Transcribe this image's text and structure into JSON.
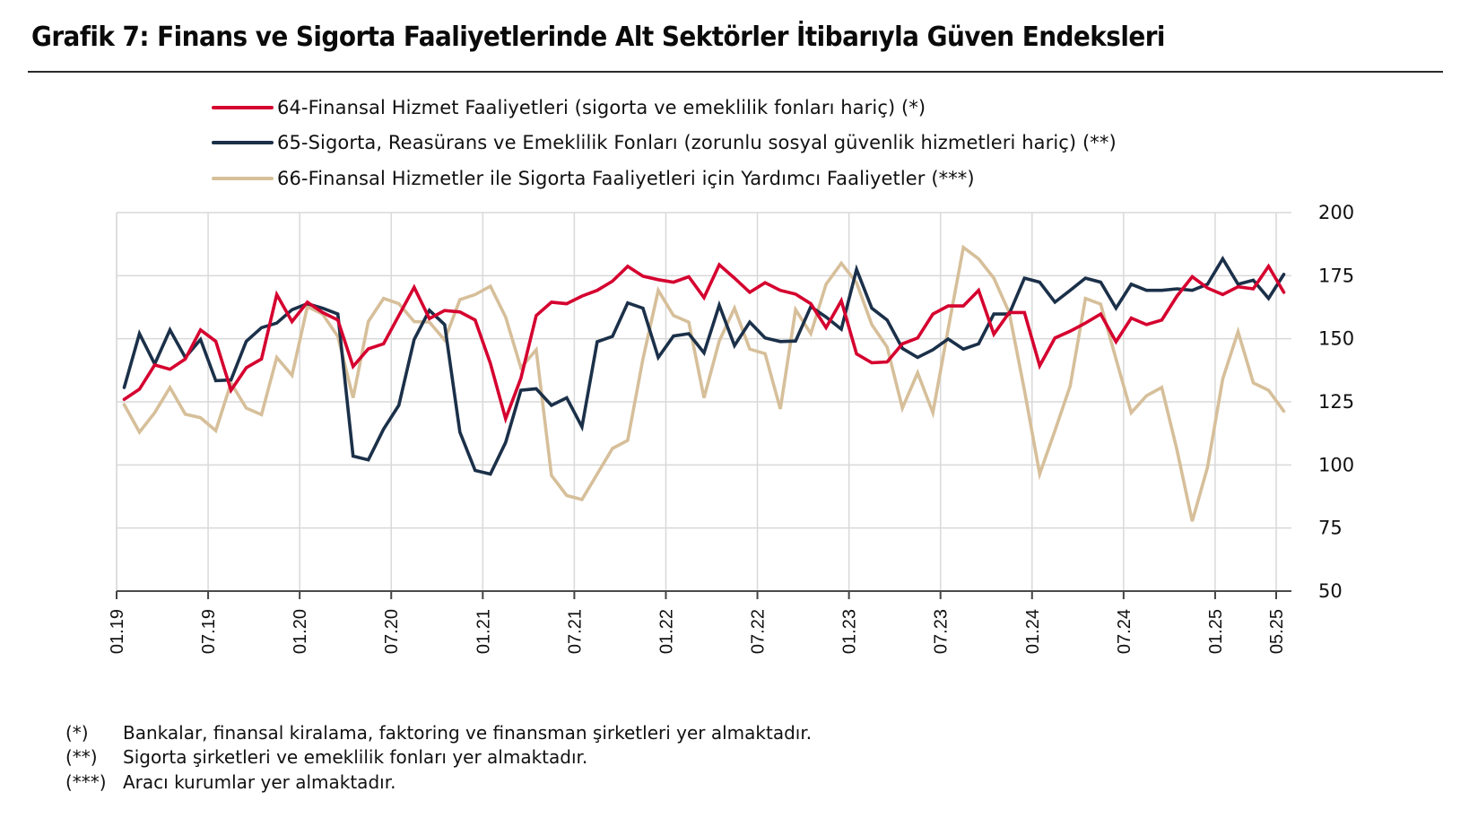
{
  "title": "Grafik 7:  Finans ve Sigorta Faaliyetlerinde Alt Sektörler İtibarıyla Güven Endeksleri",
  "footnotes": [
    {
      "mark": "(*)",
      "text": "Bankalar, finansal kiralama, faktoring ve finansman şirketleri yer almaktadır."
    },
    {
      "mark": "(**)",
      "text": "Sigorta şirketleri ve emeklilik fonları yer almaktadır."
    },
    {
      "mark": "(***)",
      "text": "Aracı kurumlar yer almaktadır."
    }
  ],
  "chart_data": {
    "type": "line",
    "title": "Grafik 7:  Finans ve Sigorta Faaliyetlerinde Alt Sektörler İtibarıyla Güven Endeksleri",
    "xlabel": "",
    "ylabel": "",
    "x_start": "01.19",
    "x_end": "05.25",
    "frequency": "monthly",
    "x_tick_labels": [
      "01.19",
      "07.19",
      "01.20",
      "07.20",
      "01.21",
      "07.21",
      "01.22",
      "07.22",
      "01.23",
      "07.23",
      "01.24",
      "07.24",
      "01.25",
      "05.25"
    ],
    "ylim": [
      50,
      200
    ],
    "y_ticks": [
      50,
      75,
      100,
      125,
      150,
      175,
      200
    ],
    "y_axis_side": "right",
    "grid": true,
    "legend_position": "top",
    "series": [
      {
        "name": "64-Finansal Hizmet Faaliyetleri (sigorta ve emeklilik fonları hariç) (*)",
        "color": "#d5002f",
        "values": [
          126.0,
          130.0,
          139.6,
          137.9,
          142.0,
          153.5,
          149.0,
          129.6,
          138.5,
          142.0,
          167.5,
          156.8,
          164.5,
          160.4,
          157.4,
          139.0,
          146.0,
          148.0,
          159.2,
          170.4,
          158.0,
          161.2,
          160.6,
          157.4,
          140.2,
          118.3,
          134.3,
          159.2,
          164.5,
          163.9,
          166.9,
          169.2,
          172.8,
          178.7,
          174.8,
          173.4,
          172.4,
          174.6,
          166.3,
          179.3,
          174.0,
          168.4,
          172.2,
          169.2,
          167.7,
          163.9,
          154.4,
          165.1,
          144.0,
          140.5,
          140.8,
          148.0,
          150.3,
          159.8,
          163.0,
          163.0,
          169.2,
          151.8,
          160.4,
          160.4,
          139.3,
          150.3,
          153.0,
          156.2,
          159.8,
          148.8,
          158.2,
          155.6,
          157.4,
          166.9,
          174.6,
          170.1,
          167.5,
          170.6,
          169.8,
          178.7,
          168.4
        ]
      },
      {
        "name": "65-Sigorta, Reasürans ve Emeklilik Fonları (zorunlu sosyal güvenlik hizmetleri hariç) (**)",
        "color": "#1b3049",
        "values": [
          130.7,
          152.0,
          140.0,
          153.5,
          142.6,
          149.7,
          133.4,
          133.7,
          149.0,
          154.4,
          156.2,
          161.5,
          163.9,
          162.1,
          159.8,
          103.5,
          102.0,
          114.2,
          123.6,
          149.7,
          161.3,
          155.6,
          113.0,
          97.8,
          96.4,
          108.9,
          129.6,
          130.2,
          123.6,
          126.6,
          115.1,
          148.8,
          150.9,
          164.2,
          162.1,
          142.6,
          151.1,
          152.0,
          144.4,
          163.3,
          147.3,
          156.6,
          150.3,
          148.9,
          149.1,
          162.7,
          158.6,
          153.8,
          177.5,
          162.1,
          157.4,
          146.2,
          142.6,
          145.6,
          149.9,
          145.9,
          148.0,
          159.8,
          159.8,
          174.0,
          172.4,
          164.5,
          169.2,
          174.0,
          172.4,
          162.1,
          171.6,
          169.2,
          169.2,
          169.8,
          169.2,
          171.6,
          181.7,
          171.6,
          173.2,
          166.0,
          175.5
        ]
      },
      {
        "name": "66-Finansal Hizmetler ile Sigorta Faaliyetleri için Yardımcı Faaliyetler (***)",
        "color": "#d6bf9a",
        "values": [
          123.9,
          113.0,
          120.7,
          130.7,
          120.1,
          118.7,
          113.6,
          132.5,
          122.5,
          119.9,
          142.6,
          135.5,
          162.7,
          159.8,
          150.9,
          126.6,
          156.8,
          166.0,
          163.9,
          156.8,
          156.6,
          149.5,
          165.5,
          167.5,
          170.8,
          158.6,
          138.5,
          145.6,
          95.8,
          87.9,
          86.3,
          96.4,
          106.5,
          109.7,
          142.0,
          169.2,
          159.2,
          156.6,
          126.6,
          149.1,
          162.1,
          145.9,
          144.1,
          122.2,
          161.5,
          152.0,
          171.6,
          179.9,
          172.2,
          155.6,
          146.7,
          122.5,
          136.5,
          120.7,
          153.8,
          186.2,
          181.7,
          174.0,
          160.4,
          129.6,
          96.4,
          113.6,
          131.3,
          166.0,
          163.7,
          142.0,
          120.7,
          127.4,
          130.7,
          105.9,
          77.7,
          99.0,
          134.1,
          152.8,
          132.5,
          129.6,
          121.3
        ]
      }
    ]
  }
}
